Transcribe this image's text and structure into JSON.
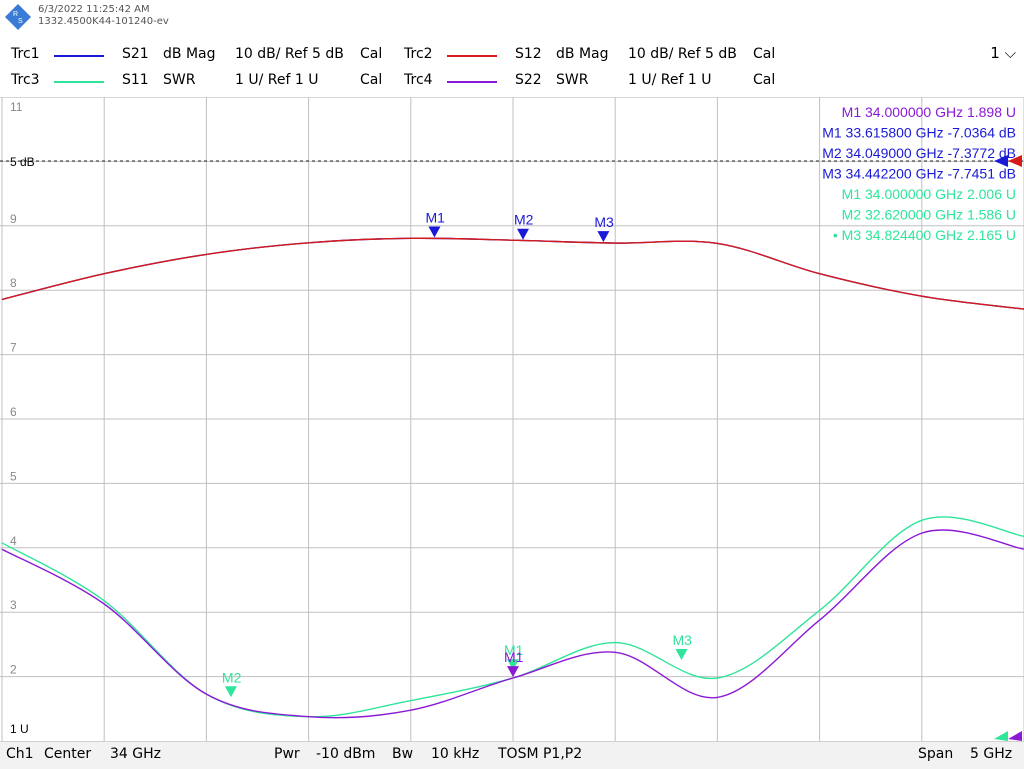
{
  "header": {
    "timestamp": "6/3/2022 11:25:42 AM",
    "device_id": "1332.4500K44-101240-ev",
    "channel_select": "1",
    "traces": [
      {
        "name": "Trc1",
        "param": "S21",
        "format": "dB Mag",
        "scale": "10 dB/ Ref 5 dB",
        "cal": "Cal",
        "color": "#1a1ad6"
      },
      {
        "name": "Trc2",
        "param": "S12",
        "format": "dB Mag",
        "scale": "10 dB/ Ref 5 dB",
        "cal": "Cal",
        "color": "#d41a1a"
      },
      {
        "name": "Trc3",
        "param": "S11",
        "format": "SWR",
        "scale": "1 U/ Ref 1 U",
        "cal": "Cal",
        "color": "#2ee59a"
      },
      {
        "name": "Trc4",
        "param": "S22",
        "format": "SWR",
        "scale": "1 U/ Ref 1 U",
        "cal": "Cal",
        "color": "#8a1ad6"
      }
    ]
  },
  "axis": {
    "top_label": "11",
    "ref_label": "5 dB",
    "bottom_label": "1 U",
    "tick_labels": [
      "9",
      "8",
      "7",
      "6",
      "5",
      "4",
      "3",
      "2"
    ]
  },
  "markers_readout": [
    {
      "id": "M1",
      "freq": "34.000000",
      "unit": "GHz",
      "value": "1.898",
      "vunit": "U",
      "color": "#8a1ad6"
    },
    {
      "id": "M1",
      "freq": "33.615800",
      "unit": "GHz",
      "value": "-7.0364",
      "vunit": "dB",
      "color": "#1a1ad6"
    },
    {
      "id": "M2",
      "freq": "34.049000",
      "unit": "GHz",
      "value": "-7.3772",
      "vunit": "dB",
      "color": "#1a1ad6"
    },
    {
      "id": "M3",
      "freq": "34.442200",
      "unit": "GHz",
      "value": "-7.7451",
      "vunit": "dB",
      "color": "#1a1ad6"
    },
    {
      "id": "M1",
      "freq": "34.000000",
      "unit": "GHz",
      "value": "2.006",
      "vunit": "U",
      "color": "#2ee59a"
    },
    {
      "id": "M2",
      "freq": "32.620000",
      "unit": "GHz",
      "value": "1.586",
      "vunit": "U",
      "color": "#2ee59a"
    },
    {
      "id": "• M3",
      "freq": "34.824400",
      "unit": "GHz",
      "value": "2.165",
      "vunit": "U",
      "color": "#2ee59a"
    }
  ],
  "footer": {
    "channel": "Ch1",
    "center_label": "Center",
    "center_value": "34 GHz",
    "pwr_label": "Pwr",
    "pwr_value": "-10 dBm",
    "bw_label": "Bw",
    "bw_value": "10 kHz",
    "cal_mode": "TOSM P1,P2",
    "span_label": "Span",
    "span_value": "5 GHz"
  },
  "chart_data": {
    "type": "line",
    "x_range_ghz": [
      31.5,
      36.5
    ],
    "grid": true,
    "series": [
      {
        "name": "Trc1 S21",
        "unit": "dB",
        "x": [
          31.5,
          32.0,
          32.5,
          33.0,
          33.5,
          34.0,
          34.5,
          35.0,
          35.5,
          36.0,
          36.5
        ],
        "y": [
          -16.5,
          -12.5,
          -9.5,
          -7.7,
          -7.0,
          -7.3,
          -7.75,
          -7.8,
          -12.5,
          -16.0,
          -18.0
        ]
      },
      {
        "name": "Trc2 S12",
        "unit": "dB",
        "x": [
          31.5,
          32.0,
          32.5,
          33.0,
          33.5,
          34.0,
          34.5,
          35.0,
          35.5,
          36.0,
          36.5
        ],
        "y": [
          -16.5,
          -12.5,
          -9.5,
          -7.7,
          -7.0,
          -7.3,
          -7.75,
          -7.8,
          -12.5,
          -16.0,
          -18.0
        ]
      },
      {
        "name": "Trc3 S11",
        "unit": "SWR",
        "x": [
          31.5,
          32.0,
          32.5,
          33.0,
          33.5,
          34.0,
          34.5,
          35.0,
          35.5,
          36.0,
          36.5
        ],
        "y": [
          4.0,
          3.1,
          1.65,
          1.3,
          1.55,
          1.9,
          2.45,
          1.9,
          2.95,
          4.35,
          4.1
        ]
      },
      {
        "name": "Trc4 S22",
        "unit": "SWR",
        "x": [
          31.5,
          32.0,
          32.5,
          33.0,
          33.5,
          34.0,
          34.5,
          35.0,
          35.5,
          36.0,
          36.5
        ],
        "y": [
          3.9,
          3.05,
          1.65,
          1.3,
          1.4,
          1.9,
          2.3,
          1.6,
          2.8,
          4.15,
          3.9
        ]
      }
    ],
    "markers": [
      {
        "label": "M1",
        "trace": "Trc1",
        "x": 33.6158,
        "y": -7.0364
      },
      {
        "label": "M2",
        "trace": "Trc1",
        "x": 34.049,
        "y": -7.3772
      },
      {
        "label": "M3",
        "trace": "Trc1",
        "x": 34.4422,
        "y": -7.7451
      },
      {
        "label": "M1",
        "trace": "Trc3",
        "x": 34.0,
        "y": 2.006
      },
      {
        "label": "M2",
        "trace": "Trc3",
        "x": 32.62,
        "y": 1.586
      },
      {
        "label": "M3",
        "trace": "Trc3",
        "x": 34.8244,
        "y": 2.165
      },
      {
        "label": "M1",
        "trace": "Trc4",
        "x": 34.0,
        "y": 1.898
      }
    ]
  }
}
